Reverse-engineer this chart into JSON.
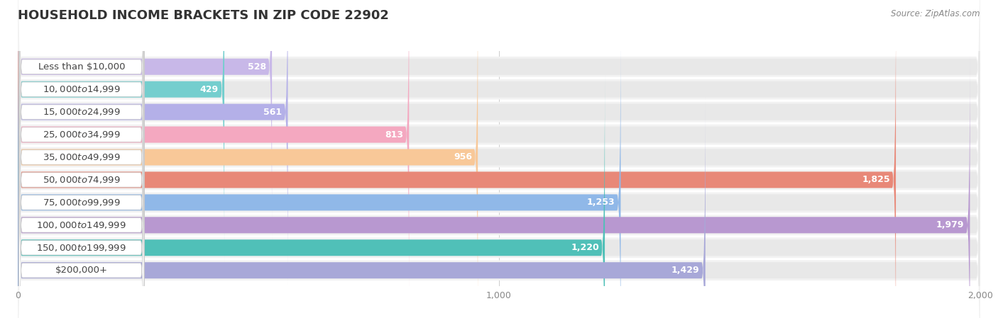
{
  "title": "HOUSEHOLD INCOME BRACKETS IN ZIP CODE 22902",
  "source": "Source: ZipAtlas.com",
  "categories": [
    "Less than $10,000",
    "$10,000 to $14,999",
    "$15,000 to $24,999",
    "$25,000 to $34,999",
    "$35,000 to $49,999",
    "$50,000 to $74,999",
    "$75,000 to $99,999",
    "$100,000 to $149,999",
    "$150,000 to $199,999",
    "$200,000+"
  ],
  "values": [
    528,
    429,
    561,
    813,
    956,
    1825,
    1253,
    1979,
    1220,
    1429
  ],
  "bar_colors": [
    "#c8b8e8",
    "#74cece",
    "#b4b0e8",
    "#f4a8c0",
    "#f8c898",
    "#e88878",
    "#90b8e8",
    "#b898d0",
    "#50c0b8",
    "#a8a8d8"
  ],
  "xlim": [
    0,
    2000
  ],
  "background_color": "#ffffff",
  "bar_bg_color": "#e8e8e8",
  "row_bg_color": "#f2f2f2",
  "label_box_color": "#ffffff",
  "title_fontsize": 13,
  "label_fontsize": 9.5,
  "value_fontsize": 9
}
